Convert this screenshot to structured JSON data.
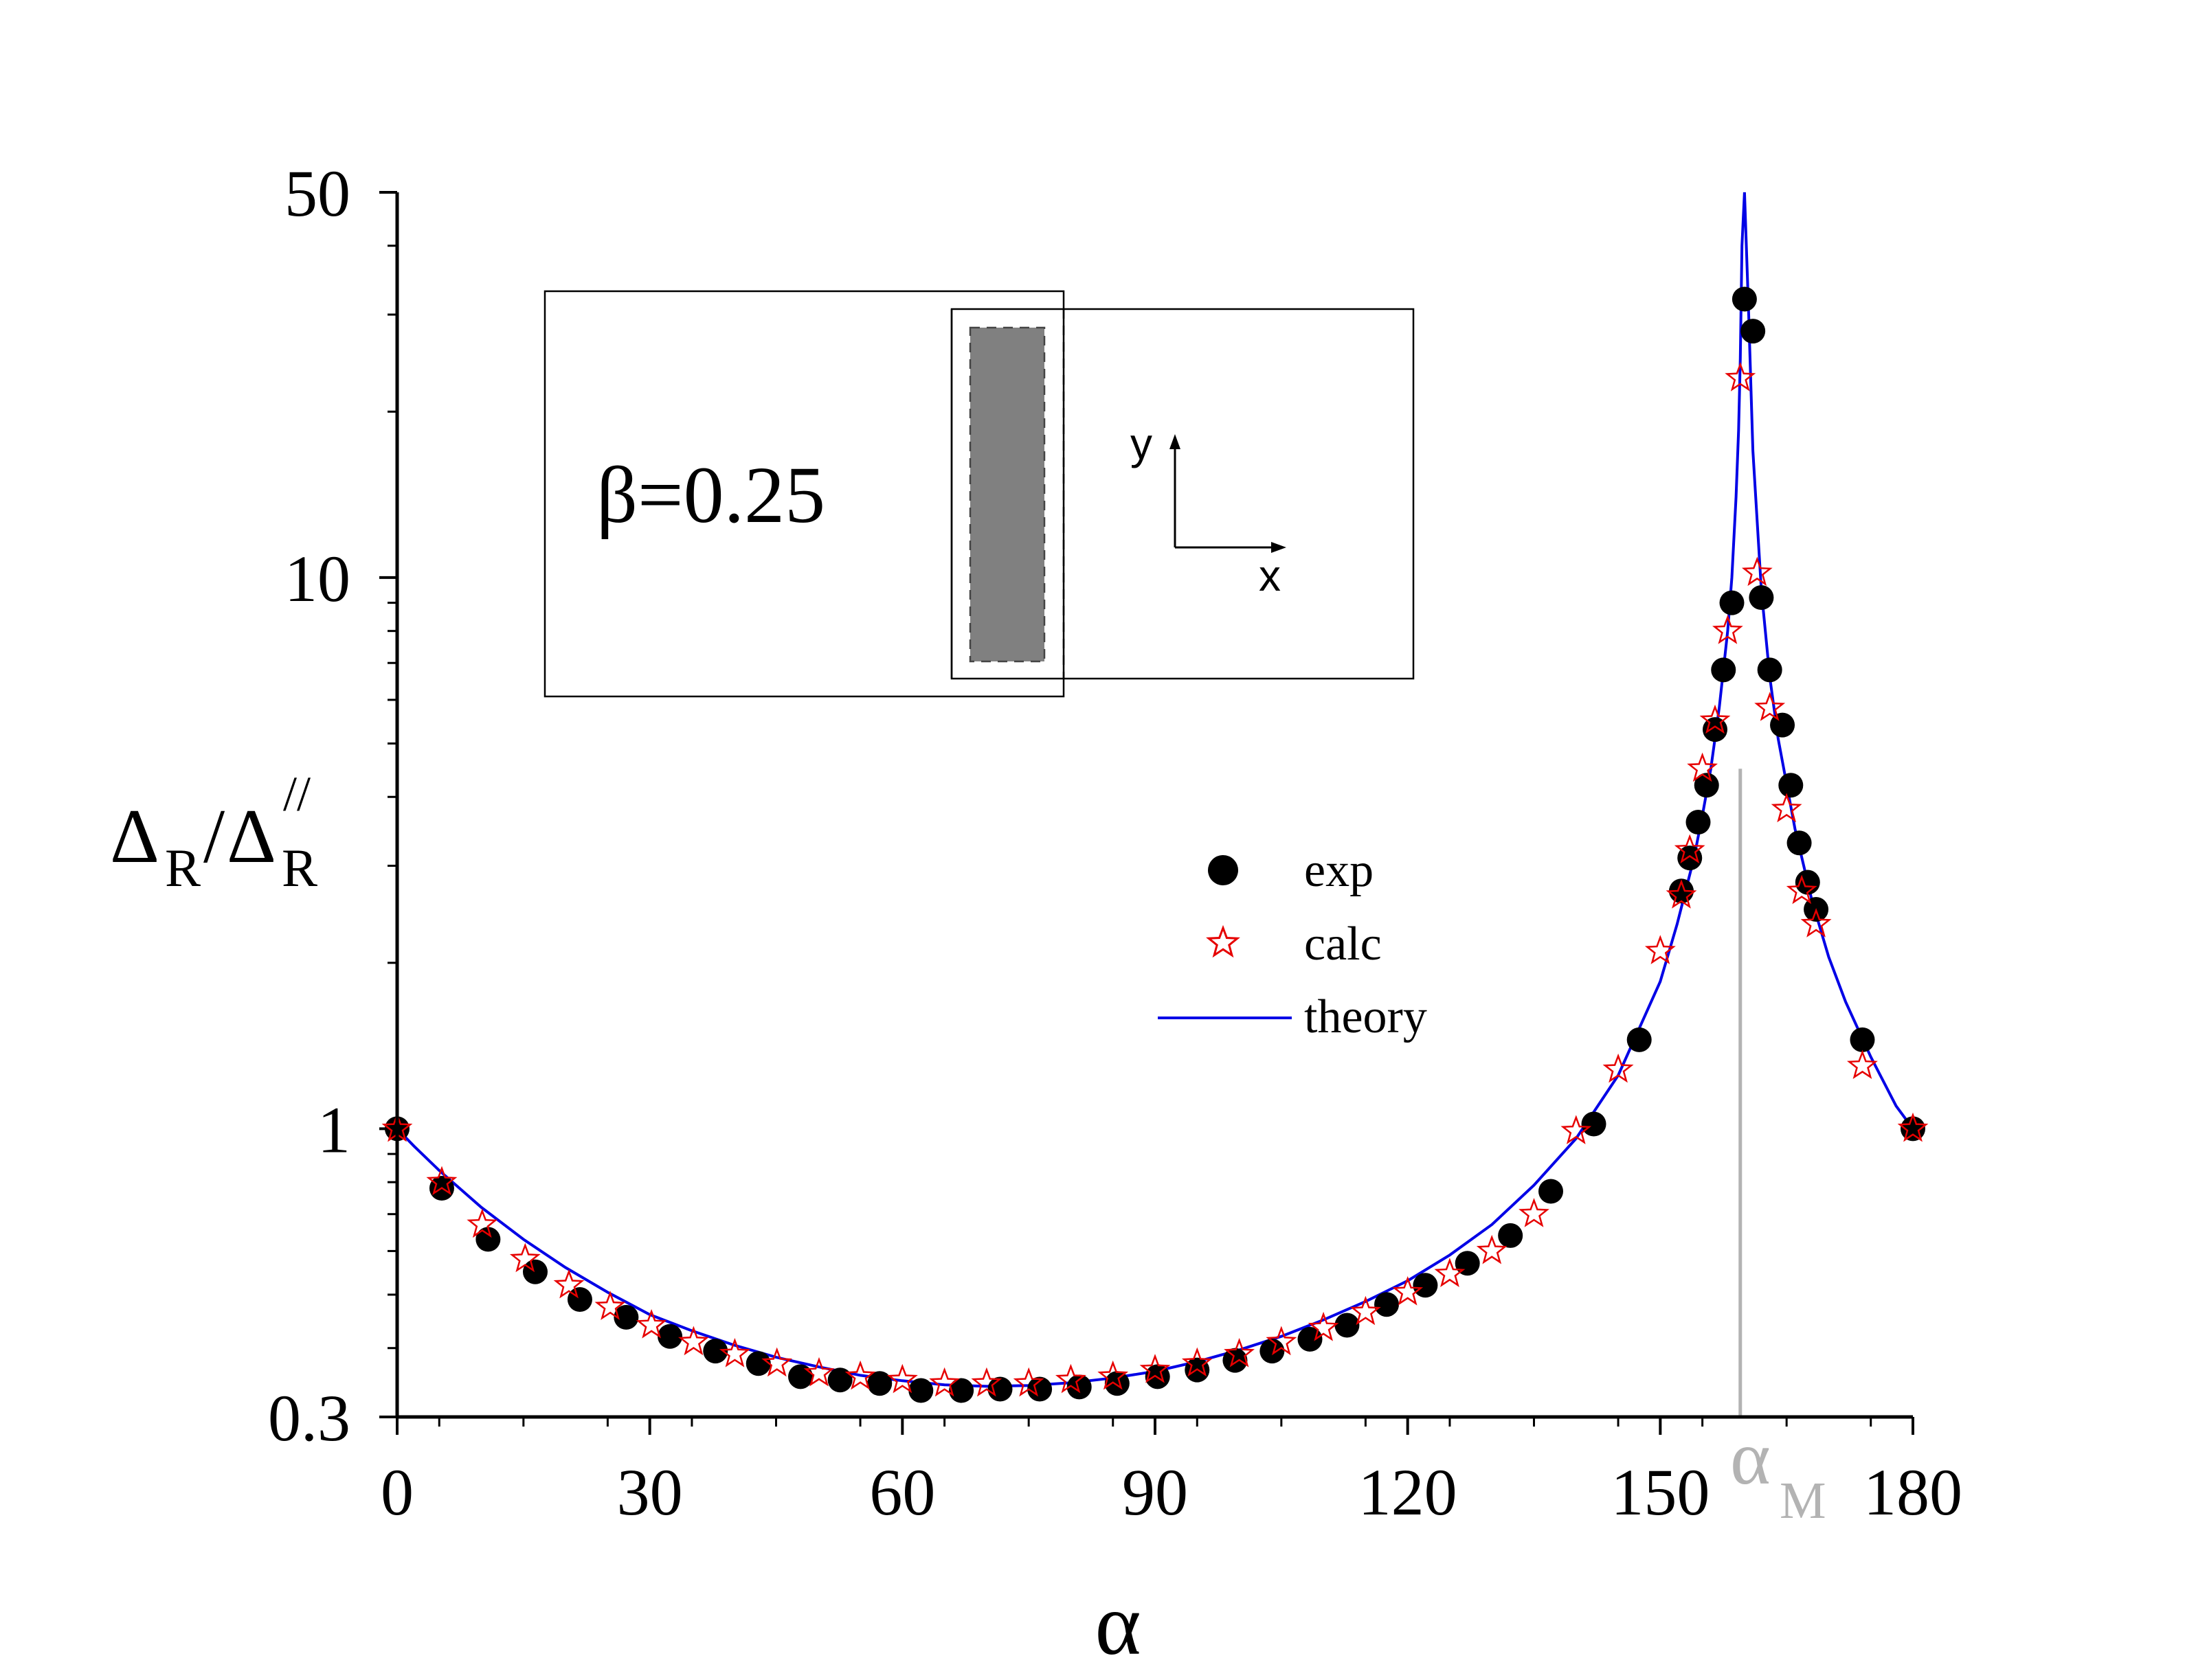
{
  "chart_data": {
    "type": "scatter",
    "xlabel": "α",
    "ylabel": {
      "main": "Δ",
      "sub": "R",
      "sep": "/",
      "sup": "//"
    },
    "xlim": [
      0,
      180
    ],
    "ylim": [
      0.3,
      50
    ],
    "yscale": "log",
    "xticks": [
      "0",
      "30",
      "60",
      "90",
      "120",
      "150",
      "180"
    ],
    "yticks": [
      "0.3",
      "1",
      "10",
      "50"
    ],
    "marker_line": {
      "x": 159.5,
      "label": "α",
      "label_sub": "M",
      "color": "#b3b3b3"
    },
    "inset": {
      "label": "β=0.25",
      "axis_x": "x",
      "axis_y": "y"
    },
    "legend": {
      "position": "center-right",
      "entries": [
        "exp",
        "calc",
        "theory"
      ]
    },
    "colors": {
      "exp": "#000000",
      "calc": "#e60000",
      "theory": "#0000e6",
      "inset_fill": "#808080"
    },
    "series": [
      {
        "name": "exp",
        "marker": "filled-circle",
        "x": [
          0,
          5.3,
          10.8,
          16.4,
          21.7,
          27.2,
          32.4,
          37.8,
          42.9,
          47.9,
          52.6,
          57.3,
          62.2,
          67.0,
          71.6,
          76.3,
          81.0,
          85.5,
          90.3,
          95.0,
          99.5,
          103.9,
          108.4,
          112.8,
          117.5,
          122.1,
          127.1,
          132.2,
          137.0,
          142.1,
          147.5,
          152.5,
          153.5,
          154.5,
          155.5,
          156.5,
          157.5,
          158.5,
          160.0,
          161.0,
          162.0,
          163.0,
          164.5,
          165.5,
          166.5,
          167.5,
          168.5,
          174.0,
          180.0
        ],
        "y": [
          1.0,
          0.78,
          0.63,
          0.55,
          0.49,
          0.455,
          0.42,
          0.395,
          0.375,
          0.355,
          0.35,
          0.345,
          0.335,
          0.335,
          0.337,
          0.337,
          0.34,
          0.345,
          0.355,
          0.365,
          0.38,
          0.395,
          0.415,
          0.44,
          0.48,
          0.52,
          0.57,
          0.64,
          0.77,
          1.02,
          1.45,
          2.7,
          3.1,
          3.6,
          4.2,
          5.3,
          6.8,
          9.0,
          32.0,
          28.0,
          9.2,
          6.8,
          5.4,
          4.2,
          3.3,
          2.8,
          2.5,
          1.45,
          1.0
        ]
      },
      {
        "name": "calc",
        "marker": "open-star",
        "x": [
          0,
          5.3,
          10.1,
          15.2,
          20.4,
          25.3,
          30.2,
          35.2,
          40.1,
          45.1,
          50.1,
          55.0,
          60.0,
          65.0,
          70.0,
          75.0,
          80.0,
          85.0,
          90.0,
          95.0,
          100.0,
          105.0,
          110.0,
          115.0,
          120.0,
          125.0,
          130.0,
          135.0,
          140.0,
          145.0,
          150.0,
          152.5,
          153.5,
          155.0,
          156.5,
          158.0,
          159.5,
          161.5,
          163.0,
          165.0,
          166.8,
          168.5,
          174.0,
          180.0
        ],
        "y": [
          1.0,
          0.8,
          0.67,
          0.58,
          0.52,
          0.475,
          0.44,
          0.41,
          0.39,
          0.375,
          0.36,
          0.355,
          0.35,
          0.345,
          0.345,
          0.345,
          0.35,
          0.355,
          0.365,
          0.375,
          0.39,
          0.41,
          0.435,
          0.465,
          0.505,
          0.545,
          0.6,
          0.7,
          0.99,
          1.28,
          2.1,
          2.65,
          3.2,
          4.5,
          5.5,
          8.0,
          23.0,
          10.2,
          5.8,
          3.8,
          2.7,
          2.35,
          1.3,
          1.0
        ]
      },
      {
        "name": "theory",
        "marker": "line",
        "x": [
          0,
          2,
          5,
          10,
          15,
          20,
          25,
          30,
          35,
          40,
          45,
          50,
          55,
          60,
          65,
          70,
          75,
          80,
          85,
          90,
          95,
          100,
          105,
          110,
          115,
          120,
          125,
          130,
          135,
          140,
          145,
          150,
          152,
          154,
          155,
          156,
          157,
          158,
          158.5,
          159,
          159.3,
          159.5,
          159.7,
          160,
          160.5,
          161,
          162,
          163,
          164,
          166,
          168,
          170,
          172,
          175,
          178,
          180
        ],
        "y": [
          1.0,
          0.93,
          0.84,
          0.72,
          0.63,
          0.56,
          0.505,
          0.46,
          0.43,
          0.405,
          0.385,
          0.37,
          0.357,
          0.349,
          0.343,
          0.341,
          0.342,
          0.346,
          0.353,
          0.363,
          0.378,
          0.397,
          0.42,
          0.45,
          0.486,
          0.53,
          0.59,
          0.67,
          0.79,
          0.96,
          1.25,
          1.85,
          2.35,
          3.1,
          3.7,
          4.5,
          5.8,
          8.0,
          10.0,
          14.0,
          18.5,
          25.0,
          40.0,
          50.0,
          30.0,
          17.0,
          9.5,
          6.6,
          5.1,
          3.5,
          2.6,
          2.05,
          1.7,
          1.35,
          1.1,
          1.0
        ]
      }
    ]
  }
}
